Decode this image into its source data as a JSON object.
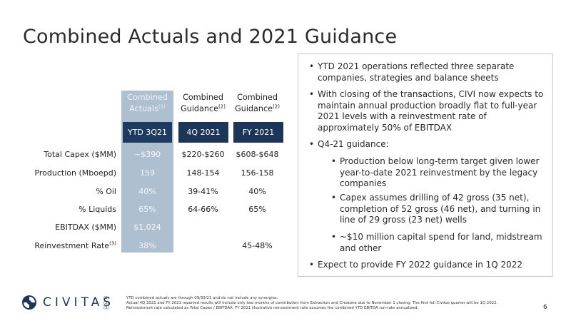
{
  "title": "Combined Actuals and 2021 Guidance",
  "table": {
    "columns": [
      {
        "line1": "Combined",
        "line2": "Actuals",
        "note": "(1)",
        "period": "YTD 3Q21"
      },
      {
        "line1": "Combined",
        "line2": "Guidance",
        "note": "(2)",
        "period": "4Q 2021"
      },
      {
        "line1": "Combined",
        "line2": "Guidance",
        "note": "(2)",
        "period": "FY 2021"
      }
    ],
    "rows": [
      {
        "label": "Total Capex ($MM)",
        "note": "",
        "values": [
          "~$390",
          "$220-$260",
          "$608-$648"
        ]
      },
      {
        "label": "Production (Mboepd)",
        "note": "",
        "values": [
          "159",
          "148-154",
          "156-158"
        ]
      },
      {
        "label": "% Oil",
        "note": "",
        "values": [
          "40%",
          "39-41%",
          "40%"
        ]
      },
      {
        "label": "% Liquids",
        "note": "",
        "values": [
          "65%",
          "64-66%",
          "65%"
        ]
      },
      {
        "label": "EBITDAX ($MM)",
        "note": "",
        "values": [
          "$1,024",
          "",
          ""
        ]
      },
      {
        "label": "Reinvestment Rate",
        "note": "(3)",
        "values": [
          "38%",
          "",
          "45-48%"
        ]
      }
    ]
  },
  "bullets": [
    "YTD 2021 operations reflected three separate companies, strategies and balance sheets",
    "With closing of the transactions, CIVI now expects to maintain annual production broadly flat to full-year 2021 levels with a reinvestment rate of approximately 50% of EBITDAX",
    "Q4-21 guidance:",
    "Production below long-term target given lower year-to-date 2021 reinvestment by the legacy companies",
    "Capex assumes drilling of 42 gross (35 net), completion of 52 gross (46 net), and turning in line of 29 gross (23 net) wells",
    "~$10 million capital spend for land, midstream and other",
    "Expect to provide FY 2022 guidance in 1Q 2022"
  ],
  "logo": {
    "text": "CIVITAS"
  },
  "footnotes": [
    {
      "num": "(1)",
      "text": "YTD combined actuals are through 09/30/21 and do not include any synergies."
    },
    {
      "num": "(2)",
      "text": "Actual 4Q 2021 and FY 2021 reported results will include only two months of contribution from Extraction and Crestone due to November 1 closing. The first full Civitas quarter will be 1Q 2022."
    },
    {
      "num": "(3)",
      "text": "Reinvestment rate calculated as Total Capex / EBITDAX. FY 2021 illustrative reinvestment rate assumes the combined YTD EBITDA run-rate annualized."
    }
  ],
  "page_number": "6",
  "colors": {
    "navy": "#1d3557",
    "shade": "#aebfd0"
  }
}
